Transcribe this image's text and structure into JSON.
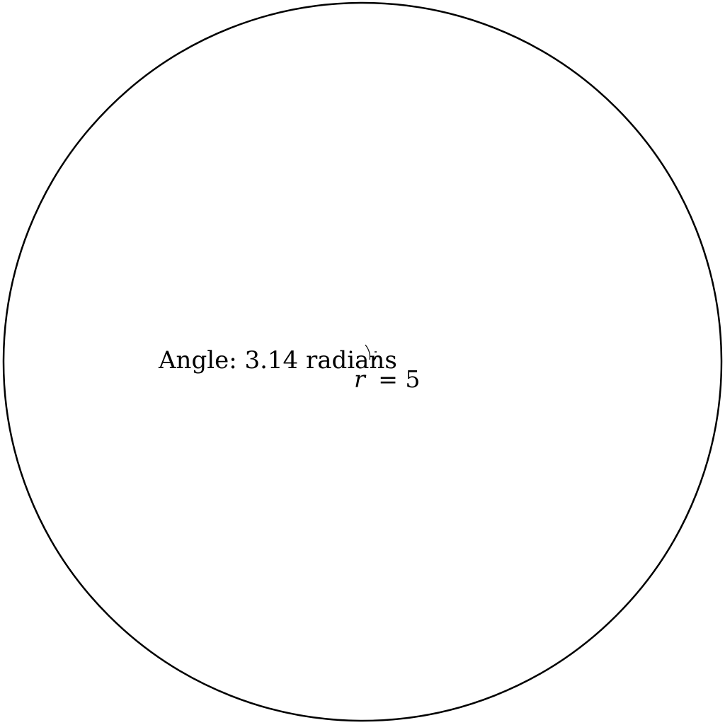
{
  "diagram": {
    "angle_label": "Angle: 3.14 radians",
    "radius_variable": "r",
    "radius_equals": "= 5",
    "angle_value_radians": 3.14,
    "radius_value": 5,
    "stroke_color": "#000000",
    "background_color": "#ffffff"
  }
}
